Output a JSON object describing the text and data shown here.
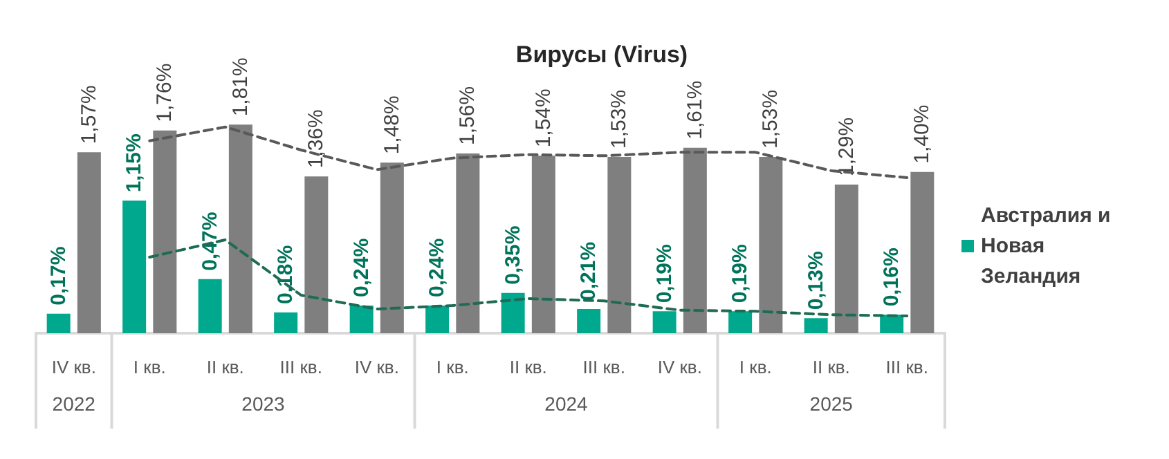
{
  "chart_data": {
    "type": "bar",
    "title": "Вирусы (Virus)",
    "categories": [
      "IV кв.",
      "I кв.",
      "II кв.",
      "III кв.",
      "IV кв.",
      "I кв.",
      "II кв.",
      "III кв.",
      "IV кв.",
      "I кв.",
      "II кв.",
      "III кв."
    ],
    "annotations": [
      "2022",
      "2023",
      "2024",
      "2025"
    ],
    "series": [
      {
        "name": "Австралия и Новая Зеландия",
        "color": "#00a88e",
        "values": [
          0.17,
          1.15,
          0.47,
          0.18,
          0.24,
          0.24,
          0.35,
          0.21,
          0.19,
          0.19,
          0.13,
          0.16
        ],
        "value_labels": [
          "0,17%",
          "1,15%",
          "0,47%",
          "0,18%",
          "0,24%",
          "0,24%",
          "0,35%",
          "0,21%",
          "0,19%",
          "0,19%",
          "0,13%",
          "0,16%"
        ]
      },
      {
        "color": "#7f7f7f",
        "values": [
          1.57,
          1.76,
          1.81,
          1.36,
          1.48,
          1.56,
          1.54,
          1.53,
          1.61,
          1.53,
          1.29,
          1.4
        ],
        "value_labels": [
          "1,57%",
          "1,76%",
          "1,81%",
          "1,36%",
          "1,48%",
          "1,56%",
          "1,54%",
          "1,53%",
          "1,61%",
          "1,53%",
          "1,29%",
          "1,40%"
        ]
      },
      {
        "type": "line",
        "color": "#1f6b55",
        "line_style": "dashed",
        "marker": "none",
        "values": [
          null,
          0.66,
          0.81,
          0.33,
          0.21,
          0.24,
          0.3,
          0.28,
          0.2,
          0.19,
          0.16,
          0.15
        ]
      },
      {
        "type": "line",
        "color": "#595959",
        "line_style": "dashed",
        "marker": "none",
        "values": [
          null,
          1.67,
          1.79,
          1.59,
          1.42,
          1.52,
          1.55,
          1.54,
          1.57,
          1.57,
          1.41,
          1.35
        ]
      }
    ],
    "legend": "right",
    "grid": false
  }
}
